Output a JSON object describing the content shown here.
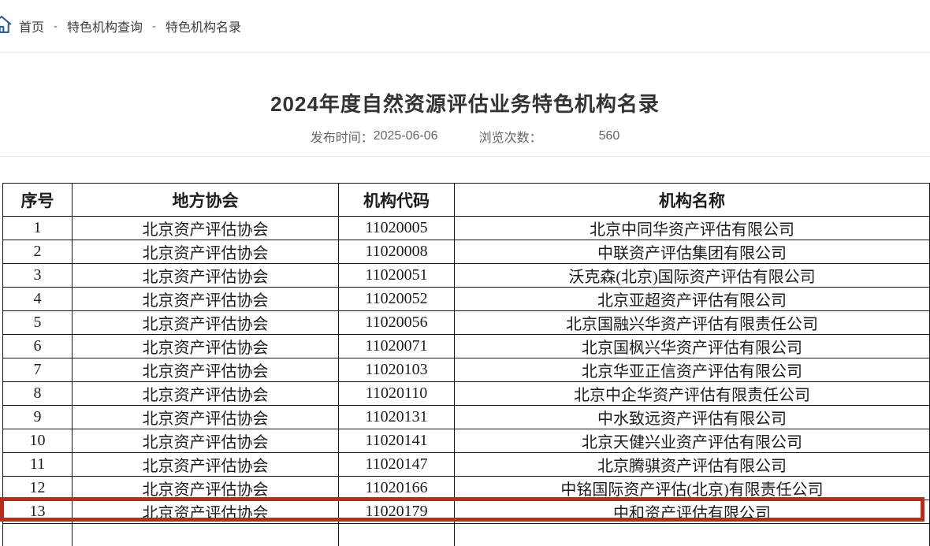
{
  "breadcrumb": {
    "separator": "-",
    "items": [
      {
        "label": "首页"
      },
      {
        "label": "特色机构查询"
      },
      {
        "label": "特色机构名录"
      }
    ]
  },
  "article": {
    "title": "2024年度自然资源评估业务特色机构名录",
    "publish_label": "发布时间：",
    "publish_date": "2025-06-06",
    "views_label": "浏览次数：",
    "views_count": "560"
  },
  "table": {
    "headers": [
      "序号",
      "地方协会",
      "机构代码",
      "机构名称"
    ],
    "rows": [
      [
        "1",
        "北京资产评估协会",
        "11020005",
        "北京中同华资产评估有限公司"
      ],
      [
        "2",
        "北京资产评估协会",
        "11020008",
        "中联资产评估集团有限公司"
      ],
      [
        "3",
        "北京资产评估协会",
        "11020051",
        "沃克森(北京)国际资产评估有限公司"
      ],
      [
        "4",
        "北京资产评估协会",
        "11020052",
        "北京亚超资产评估有限公司"
      ],
      [
        "5",
        "北京资产评估协会",
        "11020056",
        "北京国融兴华资产评估有限责任公司"
      ],
      [
        "6",
        "北京资产评估协会",
        "11020071",
        "北京国枫兴华资产评估有限公司"
      ],
      [
        "7",
        "北京资产评估协会",
        "11020103",
        "北京华亚正信资产评估有限公司"
      ],
      [
        "8",
        "北京资产评估协会",
        "11020110",
        "北京中企华资产评估有限责任公司"
      ],
      [
        "9",
        "北京资产评估协会",
        "11020131",
        "中水致远资产评估有限公司"
      ],
      [
        "10",
        "北京资产评估协会",
        "11020141",
        "北京天健兴业资产评估有限公司"
      ],
      [
        "11",
        "北京资产评估协会",
        "11020147",
        "北京腾骐资产评估有限公司"
      ],
      [
        "12",
        "北京资产评估协会",
        "11020166",
        "中铭国际资产评估(北京)有限责任公司"
      ],
      [
        "13",
        "北京资产评估协会",
        "11020179",
        "中和资产评估有限公司"
      ]
    ],
    "highlighted_row_index": 12
  },
  "colors": {
    "title_red": "#cb1e19",
    "highlight_red": "#ba2a1d",
    "icon_blue": "#2e6094",
    "table_border": "#151515"
  }
}
